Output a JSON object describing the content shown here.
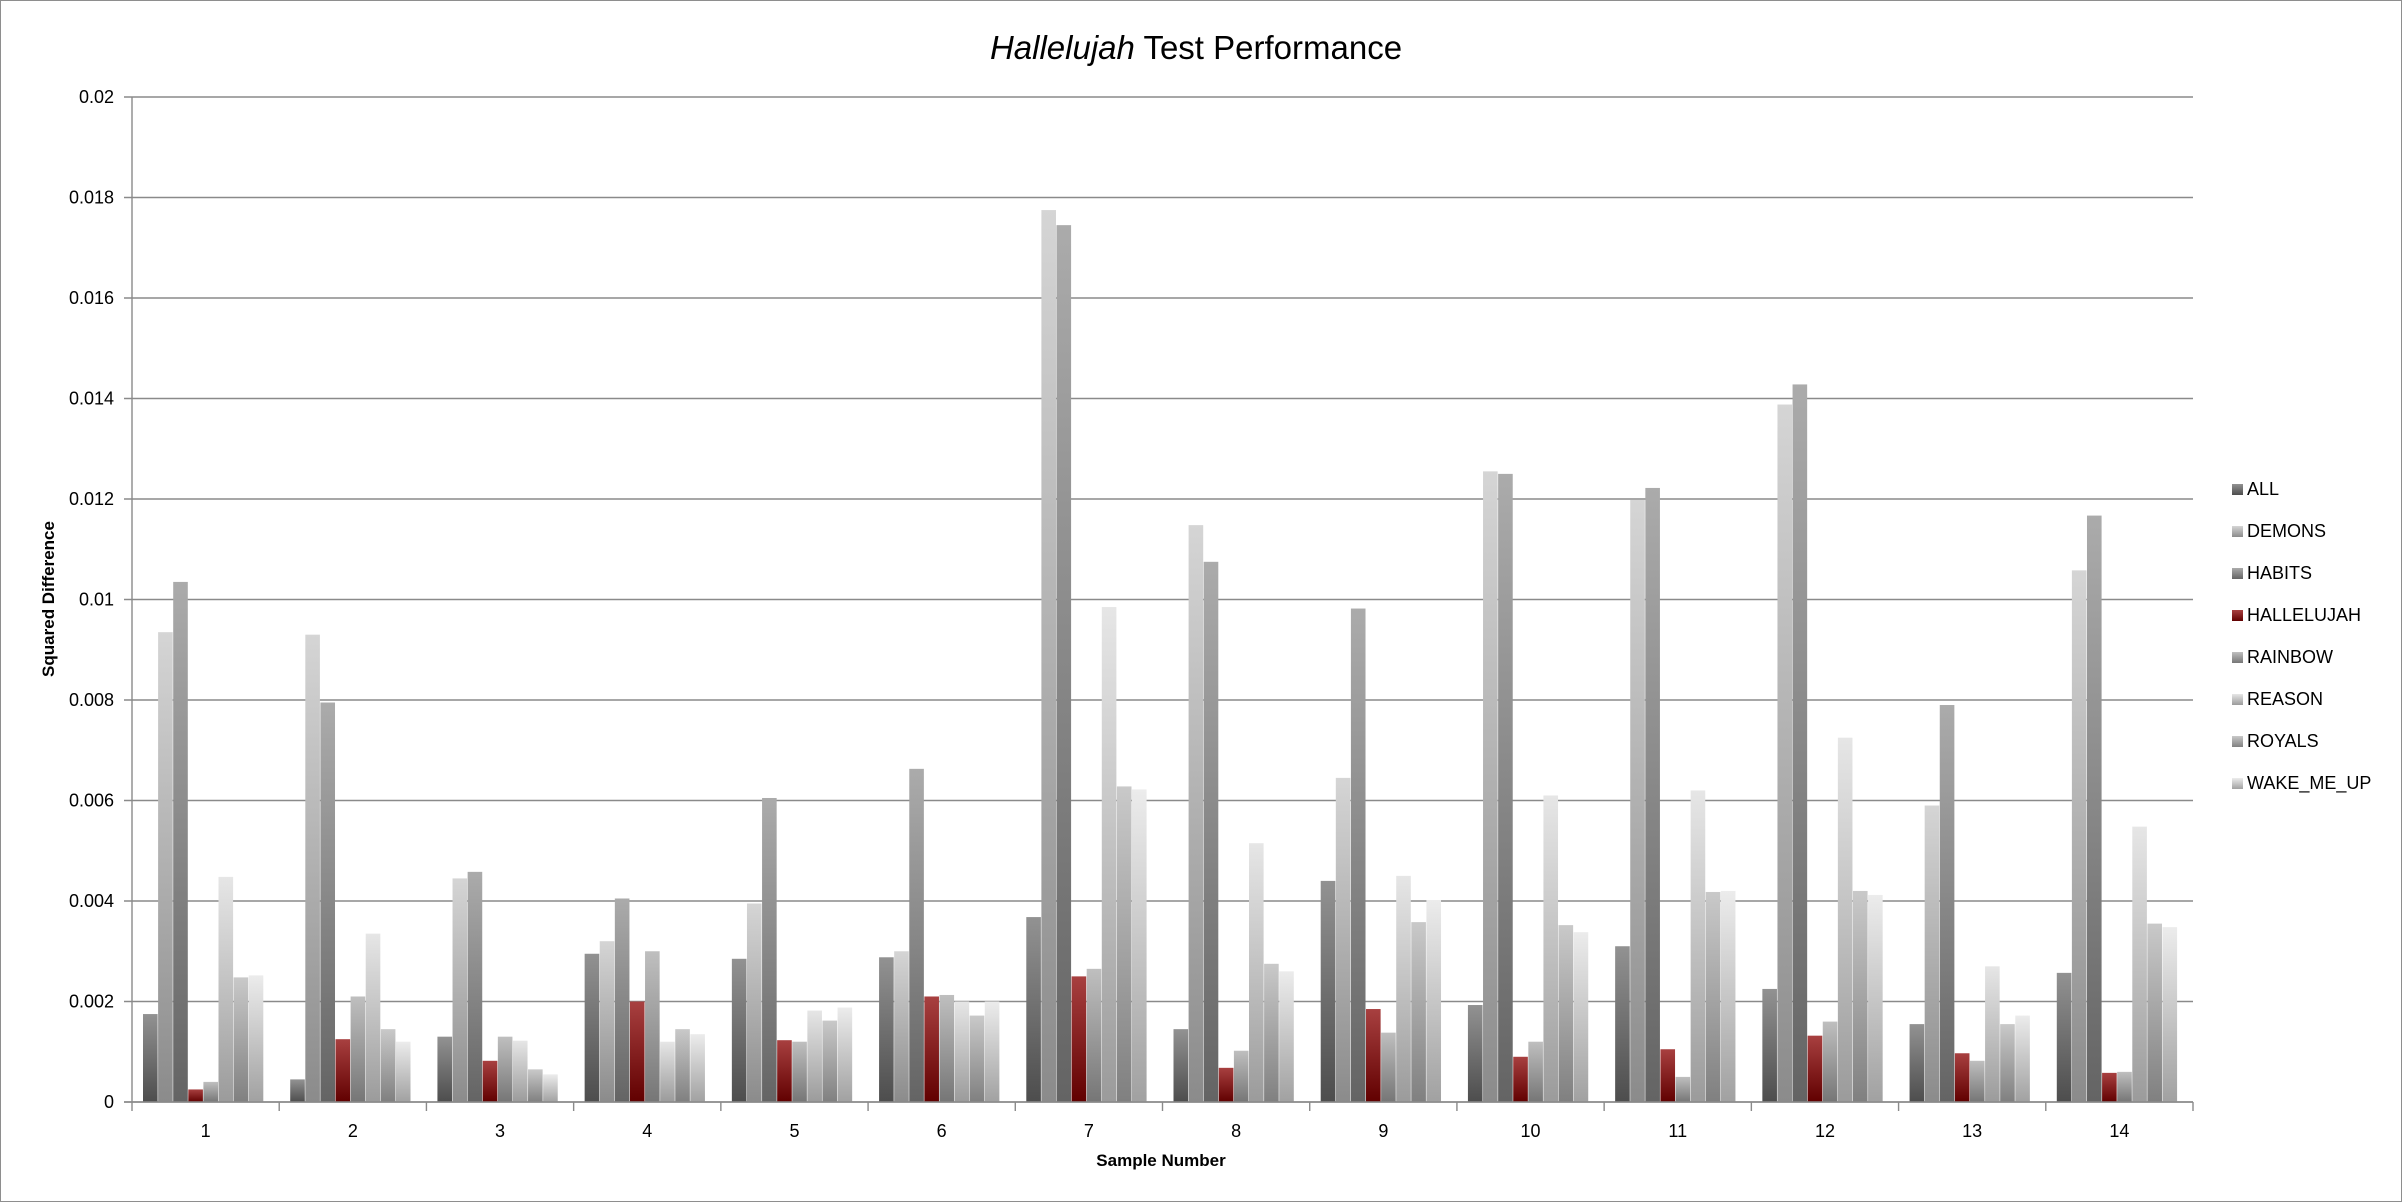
{
  "chart_data": {
    "type": "bar",
    "title_italic": "Hallelujah",
    "title_rest": " Test Performance",
    "xlabel": "Sample Number",
    "ylabel": "Squared Difference",
    "categories": [
      "1",
      "2",
      "3",
      "4",
      "5",
      "6",
      "7",
      "8",
      "9",
      "10",
      "11",
      "12",
      "13",
      "14"
    ],
    "ylim": [
      0,
      0.02
    ],
    "yticks": [
      "0",
      "0.002",
      "0.004",
      "0.006",
      "0.008",
      "0.01",
      "0.012",
      "0.014",
      "0.016",
      "0.018",
      "0.02"
    ],
    "grid": "horizontal",
    "legend_position": "right",
    "series": [
      {
        "name": "ALL",
        "color": "#6e6e6e",
        "values": [
          0.00175,
          0.00045,
          0.0013,
          0.00295,
          0.00285,
          0.00288,
          0.00368,
          0.00145,
          0.0044,
          0.00193,
          0.0031,
          0.00225,
          0.00155,
          0.00257
        ]
      },
      {
        "name": "DEMONS",
        "color": "#c7c7c7",
        "values": [
          0.00935,
          0.0093,
          0.00445,
          0.0032,
          0.00395,
          0.003,
          0.01775,
          0.01148,
          0.00645,
          0.01255,
          0.01198,
          0.01388,
          0.0059,
          0.01058
        ]
      },
      {
        "name": "HABITS",
        "color": "#8f8f8f",
        "values": [
          0.01035,
          0.00795,
          0.00458,
          0.00405,
          0.00605,
          0.00663,
          0.01745,
          0.01075,
          0.00982,
          0.0125,
          0.01222,
          0.01428,
          0.0079,
          0.01167
        ]
      },
      {
        "name": "HALLELUJAH",
        "color": "#8b0000",
        "values": [
          0.00025,
          0.00125,
          0.00082,
          0.002,
          0.00123,
          0.0021,
          0.0025,
          0.00068,
          0.00185,
          0.0009,
          0.00105,
          0.00132,
          0.00097,
          0.00058
        ]
      },
      {
        "name": "RAINBOW",
        "color": "#a9a9a9",
        "values": [
          0.0004,
          0.0021,
          0.0013,
          0.003,
          0.0012,
          0.00213,
          0.00265,
          0.00102,
          0.00138,
          0.0012,
          0.0005,
          0.0016,
          0.00082,
          0.0006
        ]
      },
      {
        "name": "REASON",
        "color": "#dddddd",
        "values": [
          0.00448,
          0.00335,
          0.00122,
          0.0012,
          0.00182,
          0.002,
          0.00985,
          0.00515,
          0.0045,
          0.0061,
          0.0062,
          0.00725,
          0.0027,
          0.00548
        ]
      },
      {
        "name": "ROYALS",
        "color": "#b7b7b7",
        "values": [
          0.00248,
          0.00145,
          0.00065,
          0.00145,
          0.00162,
          0.00172,
          0.00628,
          0.00275,
          0.00358,
          0.00352,
          0.00418,
          0.0042,
          0.00155,
          0.00355
        ]
      },
      {
        "name": "WAKE_ME_UP",
        "color": "#e6e6e6",
        "values": [
          0.00252,
          0.0012,
          0.00055,
          0.00135,
          0.00188,
          0.002,
          0.00622,
          0.0026,
          0.00402,
          0.00338,
          0.0042,
          0.00412,
          0.00172,
          0.00348
        ]
      }
    ]
  }
}
